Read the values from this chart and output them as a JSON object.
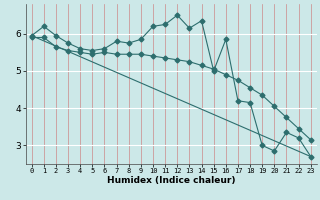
{
  "xlabel": "Humidex (Indice chaleur)",
  "bg_color": "#cce8e8",
  "line_color": "#2d6e6e",
  "xlim": [
    -0.5,
    23.5
  ],
  "ylim": [
    2.5,
    6.8
  ],
  "yticks": [
    3,
    4,
    5,
    6
  ],
  "xticks": [
    0,
    1,
    2,
    3,
    4,
    5,
    6,
    7,
    8,
    9,
    10,
    11,
    12,
    13,
    14,
    15,
    16,
    17,
    18,
    19,
    20,
    21,
    22,
    23
  ],
  "line1_x": [
    0,
    1,
    2,
    3,
    4,
    5,
    6,
    7,
    8,
    9,
    10,
    11,
    12,
    13,
    14,
    15,
    16,
    17,
    18,
    19,
    20,
    21,
    22,
    23
  ],
  "line1_y": [
    5.95,
    6.2,
    5.95,
    5.75,
    5.6,
    5.55,
    5.6,
    5.8,
    5.75,
    5.85,
    6.2,
    6.25,
    6.5,
    6.15,
    6.35,
    5.0,
    5.85,
    4.2,
    4.15,
    3.0,
    2.85,
    3.35,
    3.2,
    2.7
  ],
  "line2_x": [
    0,
    1,
    2,
    3,
    4,
    5,
    6,
    7,
    8,
    9,
    10,
    11,
    12,
    13,
    14,
    15,
    16,
    17,
    18,
    19,
    20,
    21,
    22,
    23
  ],
  "line2_y": [
    5.9,
    5.9,
    5.65,
    5.55,
    5.5,
    5.45,
    5.5,
    5.45,
    5.45,
    5.45,
    5.4,
    5.35,
    5.3,
    5.25,
    5.15,
    5.05,
    4.9,
    4.75,
    4.55,
    4.35,
    4.05,
    3.75,
    3.45,
    3.15
  ],
  "line3_x": [
    0,
    23
  ],
  "line3_y": [
    5.95,
    2.7
  ],
  "vgrid_color": "#cc8888",
  "hgrid_color": "#ffffff",
  "marker": "D",
  "markersize": 2.5,
  "linewidth": 0.8,
  "tick_fontsize": 5,
  "xlabel_fontsize": 6.5
}
